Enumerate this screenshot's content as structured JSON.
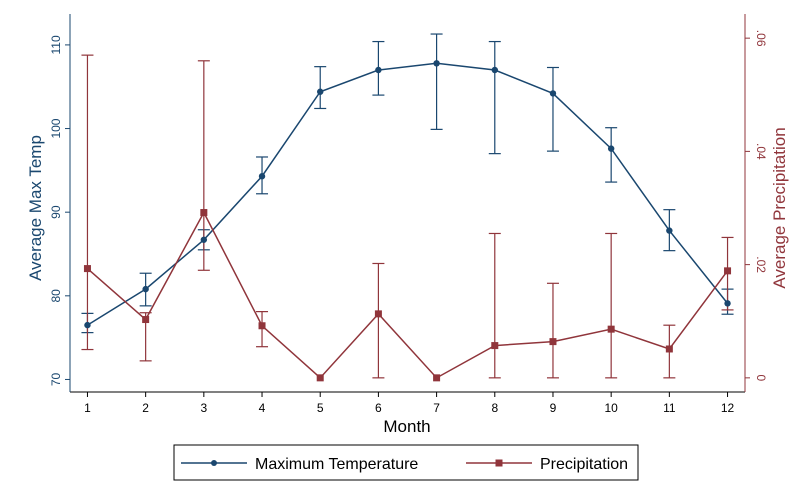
{
  "chart_data": {
    "type": "line",
    "xlabel": "Month",
    "ylabel_left": "Average Max Temp",
    "ylabel_right": "Average Precipitation",
    "x": [
      1,
      2,
      3,
      4,
      5,
      6,
      7,
      8,
      9,
      10,
      11,
      12
    ],
    "x_ticks": [
      "1",
      "2",
      "3",
      "4",
      "5",
      "6",
      "7",
      "8",
      "9",
      "10",
      "11",
      "12"
    ],
    "xlim": [
      0.7,
      12.3
    ],
    "ylim_left": [
      68.5,
      112.5
    ],
    "yticks_left": [
      70,
      80,
      90,
      100,
      110
    ],
    "ytick_labels_left": [
      "70",
      "80",
      "90",
      "100",
      "110"
    ],
    "ylim_right": [
      -0.0025,
      0.0625
    ],
    "yticks_right": [
      0,
      0.02,
      0.04,
      0.06
    ],
    "ytick_labels_right": [
      "0",
      ".02",
      ".04",
      ".06"
    ],
    "grid": false,
    "legend_position": "bottom",
    "series": [
      {
        "name": "Maximum Temperature",
        "axis": "left",
        "marker": "circle",
        "color": "#1a476f",
        "values": [
          76.5,
          80.8,
          86.7,
          94.3,
          104.4,
          107.0,
          107.8,
          107.0,
          104.2,
          97.6,
          87.8,
          79.1
        ],
        "err_low": [
          75.6,
          78.8,
          85.5,
          92.2,
          102.4,
          104.0,
          99.9,
          97.0,
          97.3,
          93.6,
          85.4,
          77.8
        ],
        "err_high": [
          77.9,
          82.7,
          87.9,
          96.6,
          107.4,
          110.4,
          111.3,
          110.4,
          107.3,
          100.1,
          90.3,
          80.8
        ]
      },
      {
        "name": "Precipitation",
        "axis": "right",
        "marker": "square",
        "color": "#90353b",
        "values": [
          0.0193,
          0.0103,
          0.0292,
          0.0092,
          0.0,
          0.0113,
          0.0,
          0.0057,
          0.0064,
          0.0086,
          0.0051,
          0.0189
        ],
        "err_low": [
          0.005,
          0.003,
          0.019,
          0.0055,
          0.0,
          0.0,
          0.0,
          0.0,
          0.0,
          0.0,
          0.0,
          0.012
        ],
        "err_high": [
          0.057,
          0.0115,
          0.056,
          0.0117,
          0.0,
          0.0202,
          0.0,
          0.0255,
          0.0167,
          0.0255,
          0.0093,
          0.0248
        ]
      }
    ]
  }
}
